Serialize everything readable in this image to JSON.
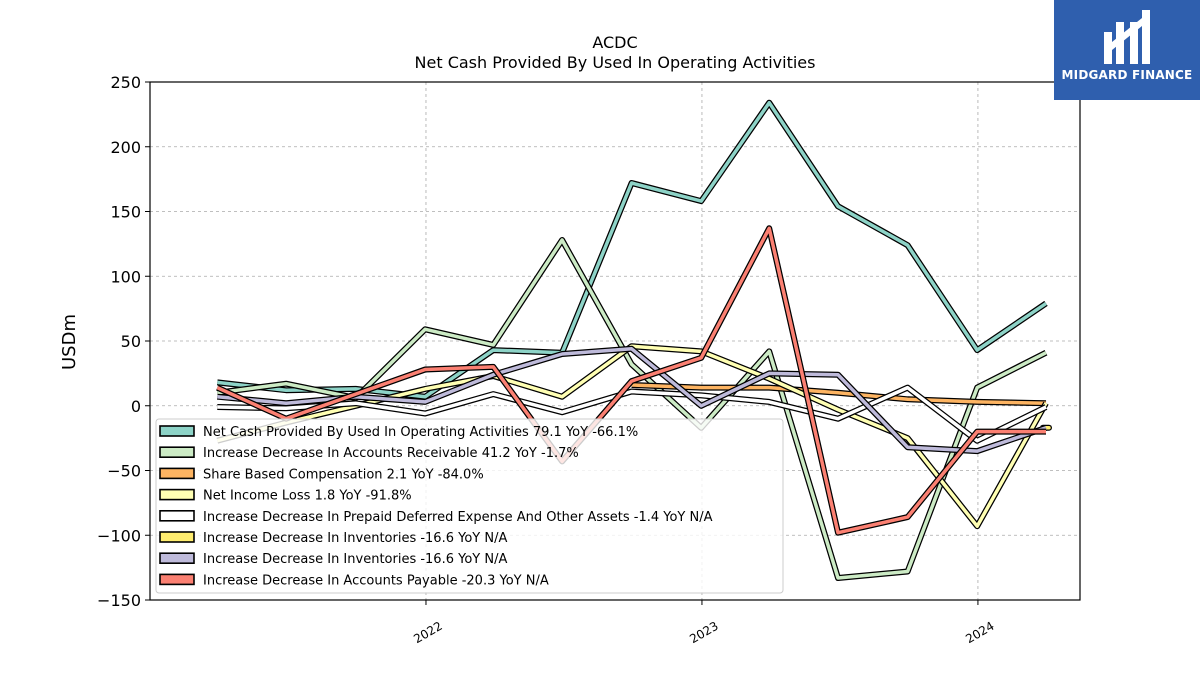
{
  "chart_data": {
    "type": "line",
    "title": "ACDC",
    "subtitle": "Net Cash Provided By Used In Operating Activities",
    "ylabel": "USDm",
    "xlabel": "",
    "ylim": [
      -150,
      250
    ],
    "xlim": [
      "2021-01-01",
      "2024-05-15"
    ],
    "yticks": [
      -150,
      -100,
      -50,
      0,
      50,
      100,
      150,
      200,
      250
    ],
    "ytick_labels": [
      "−150",
      "−100",
      "−50",
      "0",
      "50",
      "100",
      "150",
      "200",
      "250"
    ],
    "xticks": [
      "2022-01-01",
      "2023-01-01",
      "2024-01-01"
    ],
    "xtick_labels": [
      "2022",
      "2023",
      "2024"
    ],
    "grid": true,
    "legend_placement": "lower-left",
    "x": [
      "2021-03-31",
      "2021-06-30",
      "2021-09-30",
      "2021-12-31",
      "2022-03-31",
      "2022-06-30",
      "2022-09-30",
      "2022-12-31",
      "2023-03-31",
      "2023-06-30",
      "2023-09-30",
      "2023-12-31",
      "2024-03-31"
    ],
    "series": [
      {
        "name": "Net Cash Provided By Used In Operating Activities",
        "legend": "Net Cash Provided By Used In Operating Activities  79.1 YoY -66.1%",
        "color": "#8dd3c7",
        "values": [
          18,
          12,
          13,
          7,
          43,
          41,
          172,
          158,
          234,
          154,
          124,
          43,
          79
        ]
      },
      {
        "name": "Increase Decrease In Accounts Receivable",
        "legend": "Increase Decrease In Accounts Receivable  41.2 YoY -1.7%",
        "color": "#ccebc5",
        "values": [
          10,
          17,
          6,
          59,
          47,
          128,
          32,
          -17,
          42,
          -133,
          -128,
          14,
          41
        ]
      },
      {
        "name": "Share Based Compensation",
        "legend": "Share Based Compensation  2.1 YoY -84.0%",
        "color": "#fdb462",
        "values": [
          null,
          null,
          null,
          null,
          null,
          null,
          16,
          14,
          14,
          10,
          5,
          3,
          2
        ]
      },
      {
        "name": "Net Income Loss",
        "legend": "Net Income Loss  1.8 YoY -91.8%",
        "color": "#ffffb3",
        "values": [
          -27,
          -13,
          0,
          13,
          23,
          7,
          46,
          42,
          21,
          -3,
          -25,
          -93,
          2
        ]
      },
      {
        "name": "Increase Decrease In Prepaid Deferred Expense And Other Assets",
        "legend": "Increase Decrease In Prepaid Deferred Expense And Other Assets  -1.4 YoY N/A",
        "color": "#ffffff",
        "values": [
          -1,
          -2,
          2,
          -6,
          9,
          -5,
          11,
          8,
          3,
          -10,
          14,
          -27,
          -1
        ]
      },
      {
        "name": "Increase Decrease In Inventories",
        "legend": "Increase Decrease In Inventories  -16.6 YoY N/A",
        "color": "#ffed6f",
        "values": [
          null,
          null,
          null,
          null,
          null,
          null,
          null,
          null,
          null,
          null,
          null,
          null,
          -17
        ]
      },
      {
        "name": "Increase Decrease In Inventories",
        "legend": "Increase Decrease In Inventories  -16.6 YoY N/A",
        "color": "#bebada",
        "values": [
          7,
          2,
          7,
          3,
          24,
          40,
          44,
          0,
          25,
          24,
          -32,
          -35,
          -17
        ]
      },
      {
        "name": "Increase Decrease In Accounts Payable",
        "legend": "Increase Decrease In Accounts Payable  -20.3 YoY N/A",
        "color": "#fb8072",
        "values": [
          14,
          -10,
          9,
          28,
          30,
          -43,
          19,
          37,
          137,
          -98,
          -86,
          -20,
          -20
        ]
      }
    ]
  },
  "logo": {
    "text": "MIDGARD FINANCE"
  }
}
